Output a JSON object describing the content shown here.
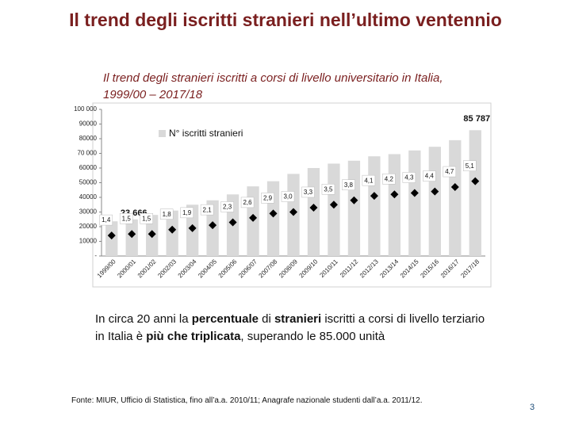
{
  "title": "Il trend degli iscritti stranieri nell’ultimo ventennio",
  "chart_data": {
    "type": "bar",
    "title": "Il trend degli stranieri iscritti a corsi di livello universitario in Italia,",
    "subtitle": "1999/00 – 2017/18",
    "categories": [
      "1999/00",
      "2000/01",
      "2001/02",
      "2002/03",
      "2003/04",
      "2004/05",
      "2005/06",
      "2006/07",
      "2007/08",
      "2008/09",
      "2009/10",
      "2010/11",
      "2011/12",
      "2012/13",
      "2013/14",
      "2014/15",
      "2015/16",
      "2016/17",
      "2017/18"
    ],
    "series": [
      {
        "name": "N° iscritti stranieri",
        "color": "#d9d9d9",
        "values": [
          23666,
          25000,
          28000,
          31000,
          35000,
          38000,
          42000,
          47500,
          51000,
          56000,
          60000,
          63000,
          65000,
          68000,
          69500,
          72000,
          74500,
          79000,
          85787
        ],
        "value_labels": [
          "23 666",
          null,
          null,
          null,
          null,
          null,
          null,
          null,
          null,
          null,
          null,
          null,
          null,
          null,
          null,
          null,
          null,
          null,
          "85 787"
        ]
      },
      {
        "type": "scatter",
        "color": "#000000",
        "axis": "y2",
        "values": [
          1.4,
          1.5,
          1.5,
          1.8,
          1.9,
          2.1,
          2.3,
          2.6,
          2.9,
          3.0,
          3.3,
          3.5,
          3.8,
          4.1,
          4.2,
          4.3,
          4.4,
          4.7,
          5.1
        ],
        "value_labels": [
          "1,4",
          "1,5",
          "1,5",
          "1,8",
          "1,9",
          "2,1",
          "2,3",
          "2,6",
          "2,9",
          "3,0",
          "3,3",
          "3,5",
          "3,8",
          "4,1",
          "4,2",
          "4,3",
          "4,4",
          "4,7",
          "5,1"
        ]
      }
    ],
    "ylim": [
      0,
      100000
    ],
    "yticks": [
      {
        "value": 0,
        "label": "-"
      },
      10000,
      20000,
      30000,
      40000,
      50000,
      60000,
      {
        "value": 70000,
        "label": "70 000"
      },
      80000,
      90000,
      {
        "value": 100000,
        "label": "100 000"
      }
    ],
    "y2lim": [
      0,
      10
    ],
    "legend": "top-left"
  },
  "body": [
    {
      "text": "In circa 20 anni la ",
      "bold": false
    },
    {
      "text": "percentuale",
      "bold": true
    },
    {
      "text": " di ",
      "bold": false
    },
    {
      "text": "stranieri",
      "bold": true
    },
    {
      "text": " iscritti a corsi di livello terziario in Italia è ",
      "bold": false
    },
    {
      "text": "più che triplicata",
      "bold": true
    },
    {
      "text": ", superando le 85.000 unità",
      "bold": false
    }
  ],
  "footnote": "Fonte: MIUR, Ufficio di Statistica, fino all’a.a. 2010/11; Anagrafe nazionale studenti dall’a.a. 2011/12.",
  "page_number": "3"
}
